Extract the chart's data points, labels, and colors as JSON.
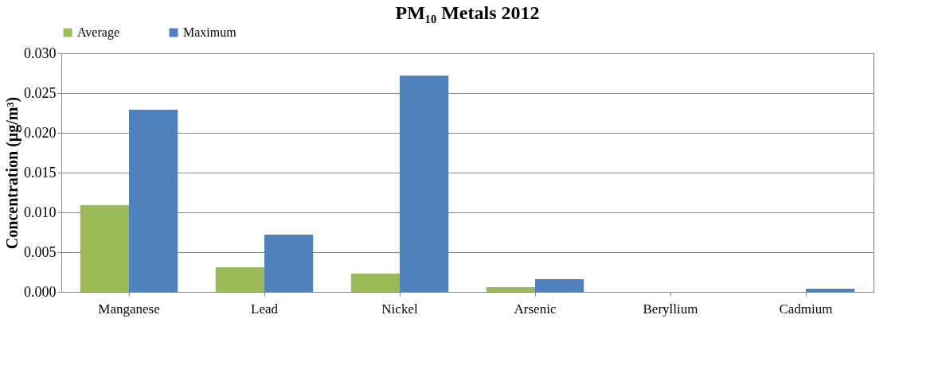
{
  "chart_data": {
    "type": "bar",
    "title": "PM₁₀ Metals 2012",
    "ylabel": "Concentration (µg/m³)",
    "categories": [
      "Manganese",
      "Lead",
      "Nickel",
      "Arsenic",
      "Beryllium",
      "Cadmium"
    ],
    "series": [
      {
        "name": "Average",
        "color": "#9bbb59",
        "values": [
          0.0109,
          0.0031,
          0.0023,
          0.0006,
          null,
          null
        ]
      },
      {
        "name": "Maximum",
        "color": "#4f81bd",
        "values": [
          0.0229,
          0.0072,
          0.0272,
          0.0016,
          null,
          0.0004
        ]
      }
    ],
    "ylim": [
      0,
      0.03
    ],
    "yticks": [
      {
        "value": 0,
        "label": "0.000"
      },
      {
        "value": 0.005,
        "label": "0.005"
      },
      {
        "value": 0.01,
        "label": "0.010"
      },
      {
        "value": 0.015,
        "label": "0.015"
      },
      {
        "value": 0.02,
        "label": "0.020"
      },
      {
        "value": 0.025,
        "label": "0.025"
      },
      {
        "value": 0.03,
        "label": "0.030"
      }
    ],
    "grid": "y",
    "legend": "top"
  }
}
